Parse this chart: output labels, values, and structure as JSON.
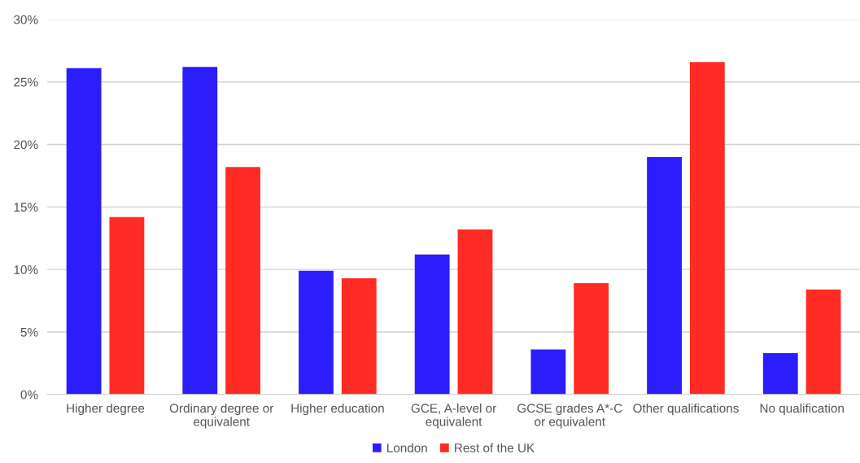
{
  "chart_data": {
    "type": "bar",
    "categories": [
      "Higher degree",
      "Ordinary degree or\nequivalent",
      "Higher education",
      "GCE, A-level or\nequivalent",
      "GCSE grades A*-C\nor equivalent",
      "Other qualifications",
      "No qualification"
    ],
    "series": [
      {
        "name": "London",
        "color": "#2b1dfc",
        "values": [
          26.1,
          26.2,
          9.9,
          11.2,
          3.6,
          19.0,
          3.3
        ]
      },
      {
        "name": "Rest of the UK",
        "color": "#fe2c24",
        "values": [
          14.2,
          18.2,
          9.3,
          13.2,
          8.9,
          26.6,
          8.4
        ]
      }
    ],
    "ylim": [
      0,
      30
    ],
    "yticks": [
      {
        "value": 0,
        "label": "0%"
      },
      {
        "value": 5,
        "label": "5%"
      },
      {
        "value": 10,
        "label": "10%"
      },
      {
        "value": 15,
        "label": "15%"
      },
      {
        "value": 20,
        "label": "20%"
      },
      {
        "value": 25,
        "label": "25%"
      },
      {
        "value": 30,
        "label": "30%"
      }
    ],
    "grid": "y",
    "legend": "bottom"
  }
}
